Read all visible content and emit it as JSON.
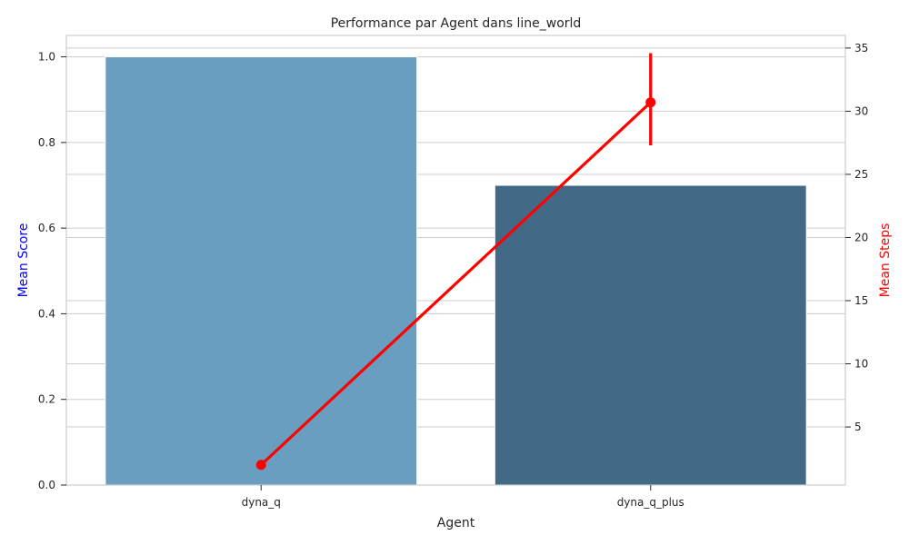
{
  "chart_data": {
    "type": "bar",
    "title": "Performance par Agent dans line_world",
    "xlabel": "Agent",
    "ylabel_left": "Mean Score",
    "ylabel_right": "Mean Steps",
    "categories": [
      "dyna_q",
      "dyna_q_plus"
    ],
    "bar_series": {
      "name": "Mean Score",
      "values": [
        1.0,
        0.7
      ],
      "colors": [
        "#6a9ec1",
        "#426a87"
      ]
    },
    "line_series": {
      "name": "Mean Steps",
      "values": [
        2.0,
        30.7
      ],
      "error_low": [
        2.0,
        27.3
      ],
      "error_high": [
        2.0,
        34.6
      ],
      "color": "#ff0000"
    },
    "ylim_left": [
      0,
      1.05
    ],
    "ylim_right": [
      0.4,
      36
    ],
    "yticks_left": [
      "0.0",
      "0.2",
      "0.4",
      "0.6",
      "0.8",
      "1.0"
    ],
    "yticks_right": [
      "5",
      "10",
      "15",
      "20",
      "25",
      "30",
      "35"
    ],
    "left_label_color": "#0000ff",
    "right_label_color": "#ff0000",
    "grid": true
  }
}
